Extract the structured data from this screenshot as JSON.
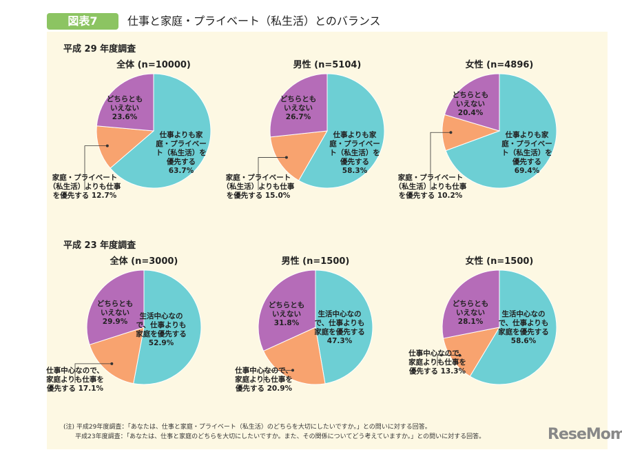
{
  "header": {
    "badge": "図表7",
    "title": "仕事と家庭・プライベート（私生活）とのバランス"
  },
  "colors": {
    "work": "#6dcfd4",
    "family": "#f8a36f",
    "neither": "#b56cb8",
    "badge": "#8cc462",
    "panel": "#fdf8e3"
  },
  "sections": [
    "平成 29 年度調査",
    "平成 23 年度調査"
  ],
  "chart_data": [
    {
      "type": "pie",
      "title": "全体 (n=10000)",
      "labels": [
        "仕事よりも家庭・プライベート（私生活）を優先する 63.7%",
        "家庭・プライベート（私生活）よりも仕事を優先する 12.7%",
        "どちらともいえない 23.6%"
      ],
      "values": [
        63.7,
        12.7,
        23.6
      ]
    },
    {
      "type": "pie",
      "title": "男性 (n=5104)",
      "labels": [
        "仕事よりも家庭・プライベート（私生活）を優先する 58.3%",
        "家庭・プライベート（私生活）よりも仕事を優先する 15.0%",
        "どちらともいえない 26.7%"
      ],
      "values": [
        58.3,
        15.0,
        26.7
      ]
    },
    {
      "type": "pie",
      "title": "女性 (n=4896)",
      "labels": [
        "仕事よりも家庭・プライベート（私生活）を優先する 69.4%",
        "家庭・プライベート（私生活）よりも仕事を優先する 10.2%",
        "どちらともいえない 20.4%"
      ],
      "values": [
        69.4,
        10.2,
        20.4
      ]
    },
    {
      "type": "pie",
      "title": "全体 (n=3000)",
      "labels": [
        "生活中心なので、仕事よりも家庭を優先する 52.9%",
        "仕事中心なので、家庭よりも仕事を優先する 17.1%",
        "どちらともいえない 29.9%"
      ],
      "values": [
        52.9,
        17.1,
        29.9
      ]
    },
    {
      "type": "pie",
      "title": "男性 (n=1500)",
      "labels": [
        "生活中心なので、仕事よりも家庭を優先する 47.3%",
        "仕事中心なので、家庭よりも仕事を優先する 20.9%",
        "どちらともいえない 31.8%"
      ],
      "values": [
        47.3,
        20.9,
        31.8
      ]
    },
    {
      "type": "pie",
      "title": "女性 (n=1500)",
      "labels": [
        "生活中心なので、仕事よりも家庭を優先する 58.6%",
        "仕事中心なので、家庭よりも仕事を優先する 13.3%",
        "どちらともいえない 28.1%"
      ],
      "values": [
        58.6,
        13.3,
        28.1
      ]
    }
  ],
  "pie_text": [
    [
      "仕事よりも家\n庭・プライベー\nト（私生活）を\n優先する\n63.7%",
      "家庭・プライベート\n（私生活）よりも仕事\nを優先する 12.7%",
      "どちらとも\nいえない\n23.6%"
    ],
    [
      "仕事よりも家\n庭・プライベー\nト（私生活）を\n優先する\n58.3%",
      "家庭・プライベート\n（私生活）よりも仕事\nを優先する 15.0%",
      "どちらとも\nいえない\n26.7%"
    ],
    [
      "仕事よりも家\n庭・プライベー\nト（私生活）を\n優先する\n69.4%",
      "家庭・プライベート\n（私生活）よりも仕事\nを優先する 10.2%",
      "どちらとも\nいえない\n20.4%"
    ],
    [
      "生活中心なの\nで、仕事よりも\n家庭を優先する\n52.9%",
      "仕事中心なので、\n家庭よりも仕事を\n優先する 17.1%",
      "どちらとも\nいえない\n29.9%"
    ],
    [
      "生活中心なの\nで、仕事よりも\n家庭を優先する\n47.3%",
      "仕事中心なので、\n家庭よりも仕事を\n優先する 20.9%",
      "どちらとも\nいえない\n31.8%"
    ],
    [
      "生活中心なの\nで、仕事よりも\n家庭を優先する\n58.6%",
      "仕事中心なので、\n家庭よりも仕事を\n優先する 13.3%",
      "どちらとも\nいえない\n28.1%"
    ]
  ],
  "note": "(注) 平成29年度調査：「あなたは、仕事と家庭・プライベート（私生活）のどちらを大切にしたいですか。」との問いに対する回答。\n      平成23年度調査：「あなたは、仕事と家庭のどちらを大切にしたいですか。また、その関係についてどう考えていますか。」との問いに対する回答。",
  "logo": "ReseMom"
}
